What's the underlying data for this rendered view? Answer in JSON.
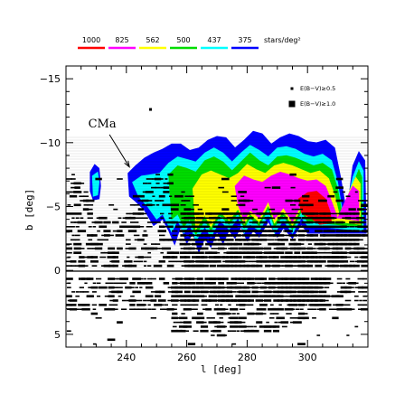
{
  "chart_data": {
    "type": "contour",
    "xlabel": "l [deg]",
    "ylabel": "b [deg]",
    "xlim": [
      220,
      320
    ],
    "ylim": [
      6,
      -16
    ],
    "x_ticks": [
      240,
      260,
      280,
      300
    ],
    "y_ticks": [
      -15,
      -10,
      -5,
      0,
      5
    ],
    "y_tick_labels": [
      "−15",
      "−10",
      "−5",
      "0",
      "5"
    ],
    "grid": false,
    "color_scale": {
      "unit_label": "stars/deg²",
      "levels": [
        {
          "value": "1000",
          "color": "#ff0000"
        },
        {
          "value": "825",
          "color": "#ff00ff"
        },
        {
          "value": "562",
          "color": "#ffff00"
        },
        {
          "value": "500",
          "color": "#00dd00"
        },
        {
          "value": "437",
          "color": "#00ffff"
        },
        {
          "value": "375",
          "color": "#0000ff"
        }
      ]
    },
    "extinction_key": [
      {
        "marker": "small-square",
        "label": "E(B−V)≥0.5"
      },
      {
        "marker": "large-square",
        "label": "E(B−V)≥1.0"
      }
    ],
    "annotations": [
      {
        "text": "CMa",
        "x": 232,
        "y": -11.2,
        "arrow_to": [
          241,
          -8.1
        ]
      }
    ],
    "contours": [
      {
        "level": "375",
        "color": "#0000ff",
        "points": [
          [
            240.5,
            -7.6
          ],
          [
            243,
            -8.2
          ],
          [
            246,
            -8.8
          ],
          [
            249,
            -9.2
          ],
          [
            252,
            -9.5
          ],
          [
            255,
            -9.9
          ],
          [
            258,
            -9.9
          ],
          [
            261,
            -9.4
          ],
          [
            264,
            -9.6
          ],
          [
            267,
            -10.2
          ],
          [
            270,
            -10.5
          ],
          [
            273,
            -10.4
          ],
          [
            276,
            -9.6
          ],
          [
            279,
            -10.2
          ],
          [
            282,
            -10.9
          ],
          [
            285,
            -10.7
          ],
          [
            288,
            -9.9
          ],
          [
            291,
            -10.4
          ],
          [
            294,
            -10.7
          ],
          [
            297,
            -10.5
          ],
          [
            300,
            -10.1
          ],
          [
            303,
            -10.0
          ],
          [
            306,
            -10.2
          ],
          [
            309,
            -9.6
          ],
          [
            311,
            -7.3
          ],
          [
            313,
            -4.5
          ],
          [
            315,
            -8.2
          ],
          [
            317,
            -9.3
          ],
          [
            319,
            -8.6
          ],
          [
            319.5,
            -2.9
          ],
          [
            300,
            -2.9
          ],
          [
            298,
            -3.6
          ],
          [
            295,
            -2.5
          ],
          [
            292,
            -3.3
          ],
          [
            290,
            -2.6
          ],
          [
            287,
            -3.8
          ],
          [
            284,
            -2.6
          ],
          [
            282,
            -3.1
          ],
          [
            280,
            -2.3
          ],
          [
            278,
            -3.4
          ],
          [
            276,
            -2.5
          ],
          [
            274,
            -3.1
          ],
          [
            272,
            -2.1
          ],
          [
            270,
            -3.0
          ],
          [
            268,
            -1.8
          ],
          [
            266,
            -2.5
          ],
          [
            264,
            -1.4
          ],
          [
            262,
            -2.9
          ],
          [
            260,
            -2.1
          ],
          [
            258,
            -3.4
          ],
          [
            256,
            -2.0
          ],
          [
            254,
            -3.1
          ],
          [
            252,
            -4.0
          ],
          [
            249,
            -3.5
          ],
          [
            246,
            -4.7
          ],
          [
            243,
            -5.4
          ],
          [
            241,
            -5.8
          ],
          [
            240.5,
            -7.6
          ]
        ]
      },
      {
        "level": "437",
        "color": "#00ffff",
        "points": [
          [
            242,
            -6.9
          ],
          [
            245,
            -7.4
          ],
          [
            248,
            -7.5
          ],
          [
            251,
            -7.6
          ],
          [
            254,
            -8.4
          ],
          [
            257,
            -8.9
          ],
          [
            260,
            -8.7
          ],
          [
            263,
            -8.5
          ],
          [
            266,
            -9.2
          ],
          [
            269,
            -9.6
          ],
          [
            272,
            -9.2
          ],
          [
            275,
            -8.5
          ],
          [
            278,
            -9.2
          ],
          [
            281,
            -9.8
          ],
          [
            284,
            -9.4
          ],
          [
            287,
            -8.9
          ],
          [
            290,
            -9.6
          ],
          [
            293,
            -9.7
          ],
          [
            296,
            -9.5
          ],
          [
            299,
            -9.1
          ],
          [
            302,
            -8.9
          ],
          [
            305,
            -9.1
          ],
          [
            308,
            -8.6
          ],
          [
            310,
            -6.9
          ],
          [
            312,
            -4.0
          ],
          [
            315,
            -7.3
          ],
          [
            317,
            -8.5
          ],
          [
            318.5,
            -7.8
          ],
          [
            318.5,
            -3.1
          ],
          [
            300,
            -3.5
          ],
          [
            298,
            -4.1
          ],
          [
            295,
            -2.9
          ],
          [
            292,
            -3.9
          ],
          [
            289,
            -2.9
          ],
          [
            287,
            -4.3
          ],
          [
            284,
            -3.1
          ],
          [
            281,
            -3.6
          ],
          [
            279,
            -2.9
          ],
          [
            277,
            -4.1
          ],
          [
            274,
            -3.2
          ],
          [
            271,
            -3.9
          ],
          [
            268,
            -2.6
          ],
          [
            266,
            -3.4
          ],
          [
            263,
            -2.3
          ],
          [
            261,
            -3.6
          ],
          [
            259,
            -2.9
          ],
          [
            257,
            -3.9
          ],
          [
            255,
            -3.0
          ],
          [
            252,
            -4.4
          ],
          [
            250,
            -4.0
          ],
          [
            247,
            -5.0
          ],
          [
            244,
            -5.8
          ],
          [
            242,
            -6.9
          ]
        ]
      },
      {
        "level": "500",
        "color": "#00dd00",
        "points": [
          [
            254,
            -7.5
          ],
          [
            257,
            -8.2
          ],
          [
            260,
            -8.0
          ],
          [
            263,
            -7.7
          ],
          [
            266,
            -8.6
          ],
          [
            269,
            -8.9
          ],
          [
            272,
            -8.5
          ],
          [
            275,
            -7.8
          ],
          [
            278,
            -8.5
          ],
          [
            281,
            -9.2
          ],
          [
            284,
            -8.6
          ],
          [
            287,
            -8.2
          ],
          [
            290,
            -8.9
          ],
          [
            293,
            -9.0
          ],
          [
            296,
            -8.8
          ],
          [
            299,
            -8.5
          ],
          [
            302,
            -8.2
          ],
          [
            305,
            -8.4
          ],
          [
            308,
            -7.9
          ],
          [
            310,
            -6.4
          ],
          [
            312,
            -3.7
          ],
          [
            315,
            -6.7
          ],
          [
            317,
            -7.9
          ],
          [
            318,
            -7.3
          ],
          [
            318,
            -3.4
          ],
          [
            300,
            -3.8
          ],
          [
            298,
            -4.6
          ],
          [
            295,
            -3.2
          ],
          [
            292,
            -4.3
          ],
          [
            289,
            -3.4
          ],
          [
            287,
            -4.8
          ],
          [
            284,
            -3.5
          ],
          [
            281,
            -4.1
          ],
          [
            279,
            -3.3
          ],
          [
            277,
            -4.5
          ],
          [
            274,
            -3.6
          ],
          [
            271,
            -4.3
          ],
          [
            268,
            -3.1
          ],
          [
            266,
            -3.9
          ],
          [
            263,
            -2.8
          ],
          [
            261,
            -4.0
          ],
          [
            259,
            -3.4
          ],
          [
            257,
            -4.4
          ],
          [
            255,
            -4.0
          ],
          [
            254,
            -7.5
          ]
        ]
      },
      {
        "level": "562",
        "color": "#ffff00",
        "points": [
          [
            262,
            -6.4
          ],
          [
            265,
            -7.5
          ],
          [
            268,
            -7.8
          ],
          [
            271,
            -7.5
          ],
          [
            274,
            -7.2
          ],
          [
            277,
            -7.6
          ],
          [
            280,
            -8.3
          ],
          [
            283,
            -7.9
          ],
          [
            286,
            -7.6
          ],
          [
            289,
            -8.2
          ],
          [
            292,
            -8.4
          ],
          [
            295,
            -8.2
          ],
          [
            298,
            -7.9
          ],
          [
            301,
            -7.6
          ],
          [
            304,
            -7.8
          ],
          [
            307,
            -7.2
          ],
          [
            309,
            -5.9
          ],
          [
            311,
            -3.9
          ],
          [
            314,
            -6.3
          ],
          [
            316,
            -7.3
          ],
          [
            317.5,
            -6.8
          ],
          [
            317.5,
            -3.6
          ],
          [
            300,
            -4.1
          ],
          [
            298,
            -4.9
          ],
          [
            295,
            -3.5
          ],
          [
            292,
            -4.6
          ],
          [
            289,
            -3.7
          ],
          [
            287,
            -5.1
          ],
          [
            284,
            -3.8
          ],
          [
            281,
            -4.4
          ],
          [
            279,
            -3.6
          ],
          [
            277,
            -4.8
          ],
          [
            274,
            -3.9
          ],
          [
            271,
            -4.6
          ],
          [
            268,
            -3.4
          ],
          [
            266,
            -4.3
          ],
          [
            263,
            -3.2
          ],
          [
            262,
            -6.4
          ]
        ]
      },
      {
        "level": "825",
        "color": "#ff00ff",
        "points": [
          [
            276,
            -6.6
          ],
          [
            279,
            -7.4
          ],
          [
            282,
            -7.1
          ],
          [
            285,
            -6.9
          ],
          [
            288,
            -7.4
          ],
          [
            291,
            -7.7
          ],
          [
            294,
            -7.5
          ],
          [
            297,
            -7.2
          ],
          [
            300,
            -7.0
          ],
          [
            303,
            -7.1
          ],
          [
            306,
            -6.6
          ],
          [
            308,
            -5.4
          ],
          [
            310,
            -4.1
          ],
          [
            313,
            -5.7
          ],
          [
            315,
            -6.6
          ],
          [
            317,
            -6.2
          ],
          [
            317,
            -3.9
          ],
          [
            300,
            -4.4
          ],
          [
            298,
            -5.2
          ],
          [
            295,
            -3.8
          ],
          [
            292,
            -4.9
          ],
          [
            289,
            -4.0
          ],
          [
            287,
            -5.4
          ],
          [
            284,
            -4.1
          ],
          [
            281,
            -4.7
          ],
          [
            279,
            -3.9
          ],
          [
            277,
            -5.1
          ],
          [
            276,
            -6.6
          ]
        ]
      },
      {
        "level": "1000",
        "color": "#ff0000",
        "points": [
          [
            297,
            -5.6
          ],
          [
            300,
            -6.1
          ],
          [
            303,
            -6.2
          ],
          [
            306,
            -5.6
          ],
          [
            307.5,
            -4.6
          ],
          [
            308,
            -3.7
          ],
          [
            304,
            -3.6
          ],
          [
            301,
            -4.1
          ],
          [
            298,
            -4.5
          ],
          [
            297,
            -5.6
          ]
        ]
      },
      {
        "level": "375",
        "color": "#0000ff",
        "points": [
          [
            228,
            -7.7
          ],
          [
            229.5,
            -8.3
          ],
          [
            231,
            -8.0
          ],
          [
            231.5,
            -6.6
          ],
          [
            231,
            -5.6
          ],
          [
            229,
            -5.5
          ],
          [
            228,
            -6.2
          ],
          [
            228,
            -7.7
          ]
        ]
      },
      {
        "level": "437",
        "color": "#00ffff",
        "points": [
          [
            228.7,
            -7.4
          ],
          [
            230.5,
            -7.7
          ],
          [
            231,
            -6.9
          ],
          [
            230.5,
            -5.9
          ],
          [
            229,
            -5.8
          ],
          [
            228.7,
            -7.4
          ]
        ]
      }
    ],
    "scatter": {
      "small_marker_series": "E(B−V)≥0.5",
      "large_marker_series": "E(B−V)≥1.0",
      "note": "Dense band of extinction markers around the Galactic plane (b from about −6.5 to +5.5) across l = 222 to 319."
    }
  }
}
